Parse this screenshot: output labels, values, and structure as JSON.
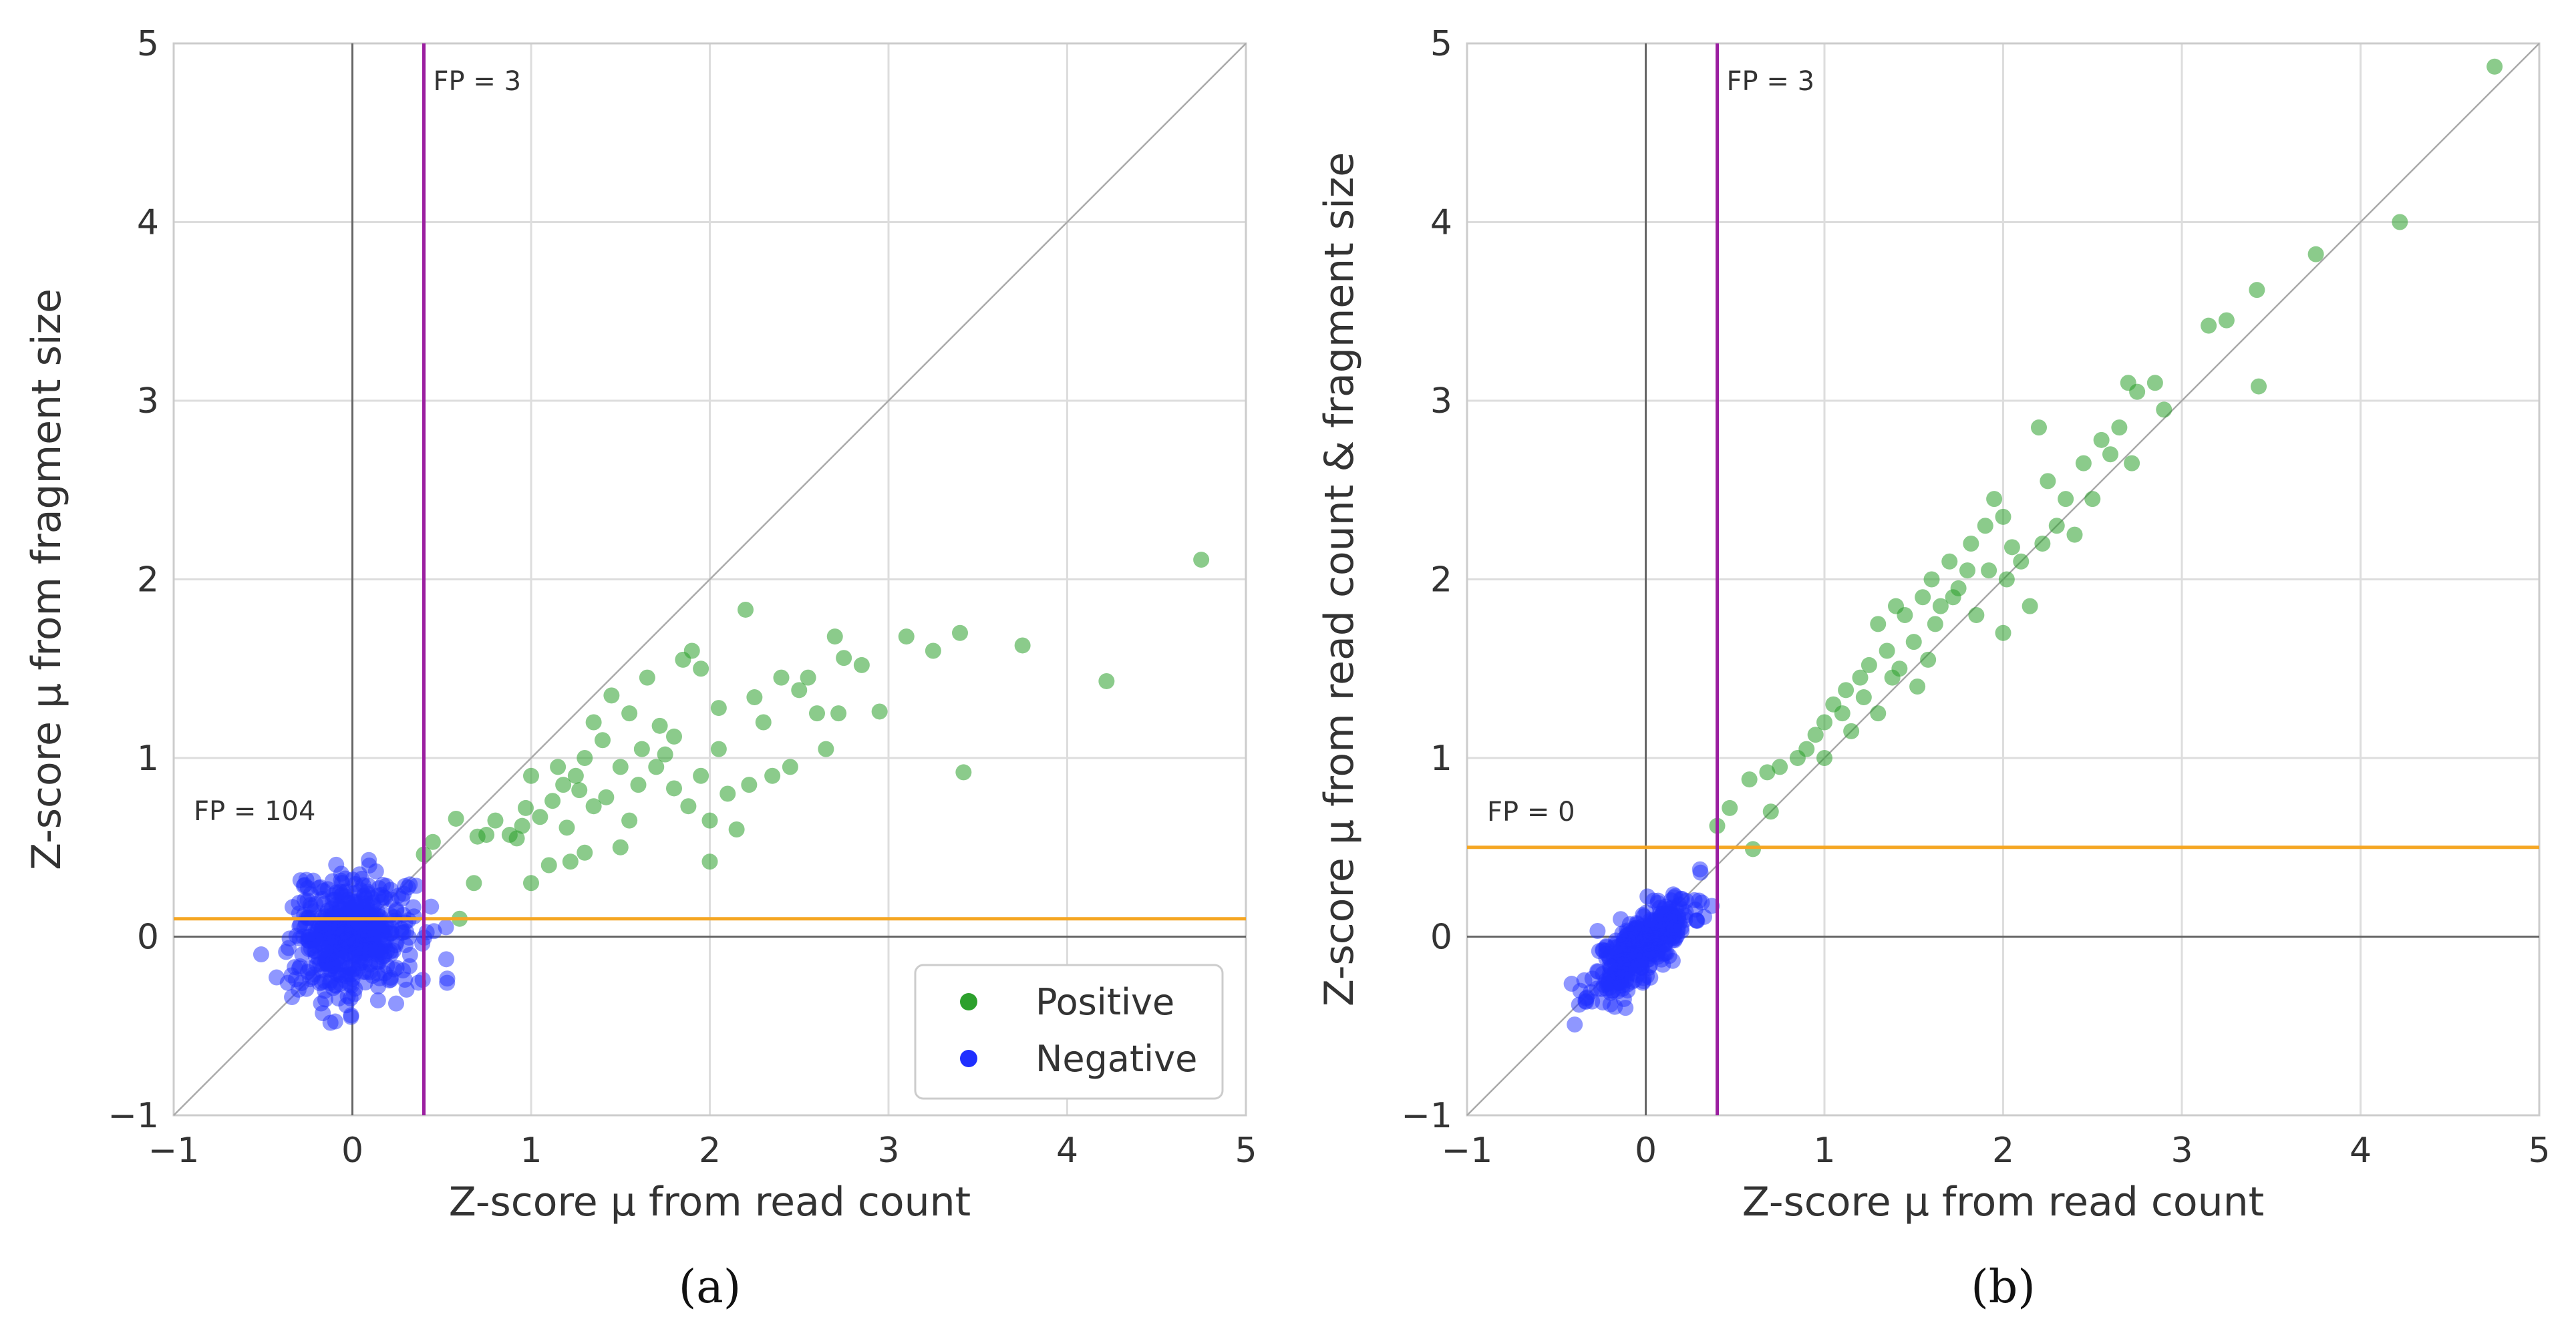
{
  "colors": {
    "positive": "#2ca02c",
    "negative": "#1f2fff",
    "vline": "#9b1fa0",
    "hline": "#f5a623",
    "grid": "#dddddd"
  },
  "legend": {
    "positive": "Positive",
    "negative": "Negative"
  },
  "chart_data": [
    {
      "type": "scatter",
      "panel_label": "(a)",
      "xlabel": "Z-score μ from read count",
      "ylabel": "Z-score μ from fragment size",
      "xlim": [
        -1,
        5
      ],
      "ylim": [
        -1,
        5
      ],
      "xticks": [
        "−1",
        "0",
        "1",
        "2",
        "3",
        "4",
        "5"
      ],
      "yticks": [
        "−1",
        "0",
        "1",
        "2",
        "3",
        "4",
        "5"
      ],
      "grid": true,
      "legend_position": "bottom-right",
      "vline": {
        "x": 0.4,
        "label": "FP = 3"
      },
      "hline": {
        "y": 0.1,
        "label": "FP = 104"
      },
      "diagonal": true,
      "series": [
        {
          "name": "Positive",
          "points": [
            [
              0.4,
              0.46
            ],
            [
              0.45,
              0.53
            ],
            [
              0.58,
              0.66
            ],
            [
              0.6,
              0.1
            ],
            [
              0.68,
              0.3
            ],
            [
              0.7,
              0.56
            ],
            [
              0.75,
              0.57
            ],
            [
              0.8,
              0.65
            ],
            [
              0.88,
              0.57
            ],
            [
              0.92,
              0.55
            ],
            [
              0.95,
              0.62
            ],
            [
              0.97,
              0.72
            ],
            [
              1.0,
              0.3
            ],
            [
              1.0,
              0.9
            ],
            [
              1.05,
              0.67
            ],
            [
              1.1,
              0.4
            ],
            [
              1.12,
              0.76
            ],
            [
              1.15,
              0.95
            ],
            [
              1.18,
              0.85
            ],
            [
              1.2,
              0.61
            ],
            [
              1.22,
              0.42
            ],
            [
              1.25,
              0.9
            ],
            [
              1.27,
              0.82
            ],
            [
              1.3,
              1.0
            ],
            [
              1.3,
              0.47
            ],
            [
              1.35,
              0.73
            ],
            [
              1.35,
              1.2
            ],
            [
              1.4,
              1.1
            ],
            [
              1.42,
              0.78
            ],
            [
              1.45,
              1.35
            ],
            [
              1.5,
              0.95
            ],
            [
              1.5,
              0.5
            ],
            [
              1.55,
              1.25
            ],
            [
              1.55,
              0.65
            ],
            [
              1.6,
              0.85
            ],
            [
              1.62,
              1.05
            ],
            [
              1.65,
              1.45
            ],
            [
              1.7,
              0.95
            ],
            [
              1.72,
              1.18
            ],
            [
              1.75,
              1.02
            ],
            [
              1.8,
              0.83
            ],
            [
              1.8,
              1.12
            ],
            [
              1.85,
              1.55
            ],
            [
              1.88,
              0.73
            ],
            [
              1.9,
              1.6
            ],
            [
              1.95,
              0.9
            ],
            [
              1.95,
              1.5
            ],
            [
              2.0,
              0.42
            ],
            [
              2.0,
              0.65
            ],
            [
              2.05,
              1.28
            ],
            [
              2.05,
              1.05
            ],
            [
              2.1,
              0.8
            ],
            [
              2.15,
              0.6
            ],
            [
              2.2,
              1.83
            ],
            [
              2.22,
              0.85
            ],
            [
              2.25,
              1.34
            ],
            [
              2.3,
              1.2
            ],
            [
              2.35,
              0.9
            ],
            [
              2.4,
              1.45
            ],
            [
              2.45,
              0.95
            ],
            [
              2.5,
              1.38
            ],
            [
              2.55,
              1.45
            ],
            [
              2.6,
              1.25
            ],
            [
              2.65,
              1.05
            ],
            [
              2.7,
              1.68
            ],
            [
              2.72,
              1.25
            ],
            [
              2.75,
              1.56
            ],
            [
              2.85,
              1.52
            ],
            [
              2.95,
              1.26
            ],
            [
              3.1,
              1.68
            ],
            [
              3.25,
              1.6
            ],
            [
              3.4,
              1.7
            ],
            [
              3.42,
              0.92
            ],
            [
              3.75,
              1.63
            ],
            [
              4.22,
              1.43
            ],
            [
              4.75,
              2.11
            ]
          ]
        },
        {
          "name": "Negative",
          "center": [
            0.0,
            0.0
          ],
          "spread": 0.17,
          "count": 480,
          "seed": 7,
          "corr": 0.0
        }
      ]
    },
    {
      "type": "scatter",
      "panel_label": "(b)",
      "xlabel": "Z-score μ from read count",
      "ylabel": "Z-score μ from read count & fragment size",
      "xlim": [
        -1,
        5
      ],
      "ylim": [
        -1,
        5
      ],
      "xticks": [
        "−1",
        "0",
        "1",
        "2",
        "3",
        "4",
        "5"
      ],
      "yticks": [
        "−1",
        "0",
        "1",
        "2",
        "3",
        "4",
        "5"
      ],
      "grid": true,
      "vline": {
        "x": 0.4,
        "label": "FP = 3"
      },
      "hline": {
        "y": 0.5,
        "label": "FP = 0"
      },
      "diagonal": true,
      "series": [
        {
          "name": "Positive",
          "points": [
            [
              0.4,
              0.62
            ],
            [
              0.47,
              0.72
            ],
            [
              0.6,
              0.49
            ],
            [
              0.58,
              0.88
            ],
            [
              0.68,
              0.92
            ],
            [
              0.7,
              0.7
            ],
            [
              0.75,
              0.95
            ],
            [
              0.85,
              1.0
            ],
            [
              0.9,
              1.05
            ],
            [
              0.95,
              1.13
            ],
            [
              1.0,
              1.2
            ],
            [
              1.0,
              1.0
            ],
            [
              1.05,
              1.3
            ],
            [
              1.1,
              1.25
            ],
            [
              1.12,
              1.38
            ],
            [
              1.15,
              1.15
            ],
            [
              1.2,
              1.45
            ],
            [
              1.22,
              1.34
            ],
            [
              1.25,
              1.52
            ],
            [
              1.3,
              1.75
            ],
            [
              1.3,
              1.25
            ],
            [
              1.35,
              1.6
            ],
            [
              1.38,
              1.45
            ],
            [
              1.4,
              1.85
            ],
            [
              1.42,
              1.5
            ],
            [
              1.45,
              1.8
            ],
            [
              1.5,
              1.65
            ],
            [
              1.52,
              1.4
            ],
            [
              1.55,
              1.9
            ],
            [
              1.58,
              1.55
            ],
            [
              1.6,
              2.0
            ],
            [
              1.62,
              1.75
            ],
            [
              1.65,
              1.85
            ],
            [
              1.7,
              2.1
            ],
            [
              1.72,
              1.9
            ],
            [
              1.75,
              1.95
            ],
            [
              1.8,
              2.05
            ],
            [
              1.82,
              2.2
            ],
            [
              1.85,
              1.8
            ],
            [
              1.9,
              2.3
            ],
            [
              1.92,
              2.05
            ],
            [
              1.95,
              2.45
            ],
            [
              2.0,
              1.7
            ],
            [
              2.0,
              2.35
            ],
            [
              2.02,
              2.0
            ],
            [
              2.05,
              2.18
            ],
            [
              2.1,
              2.1
            ],
            [
              2.15,
              1.85
            ],
            [
              2.2,
              2.85
            ],
            [
              2.22,
              2.2
            ],
            [
              2.25,
              2.55
            ],
            [
              2.3,
              2.3
            ],
            [
              2.35,
              2.45
            ],
            [
              2.4,
              2.25
            ],
            [
              2.45,
              2.65
            ],
            [
              2.5,
              2.45
            ],
            [
              2.55,
              2.78
            ],
            [
              2.6,
              2.7
            ],
            [
              2.65,
              2.85
            ],
            [
              2.7,
              3.1
            ],
            [
              2.72,
              2.65
            ],
            [
              2.75,
              3.05
            ],
            [
              2.85,
              3.1
            ],
            [
              2.9,
              2.95
            ],
            [
              3.15,
              3.42
            ],
            [
              3.25,
              3.45
            ],
            [
              3.42,
              3.62
            ],
            [
              3.43,
              3.08
            ],
            [
              3.75,
              3.82
            ],
            [
              4.22,
              4.0
            ],
            [
              4.75,
              4.87
            ]
          ]
        },
        {
          "name": "Negative",
          "center": [
            -0.02,
            -0.05
          ],
          "spread": 0.14,
          "count": 380,
          "seed": 11,
          "corr": 0.75
        }
      ]
    }
  ]
}
